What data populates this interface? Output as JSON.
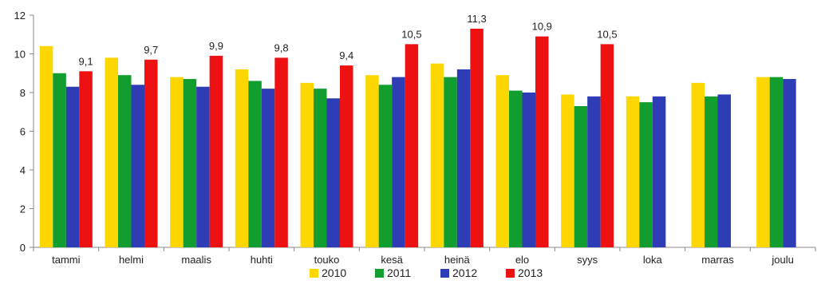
{
  "chart_data": {
    "type": "bar",
    "title": "",
    "xlabel": "",
    "ylabel": "",
    "ylim": [
      0,
      12
    ],
    "yticks": [
      "0",
      "2",
      "4",
      "6",
      "8",
      "10",
      "12"
    ],
    "categories": [
      "tammi",
      "helmi",
      "maalis",
      "huhti",
      "touko",
      "kesä",
      "heinä",
      "elo",
      "syys",
      "loka",
      "marras",
      "joulu"
    ],
    "series": [
      {
        "name": "2010",
        "color": "#FFD700",
        "values": [
          10.4,
          9.8,
          8.8,
          9.2,
          8.5,
          8.9,
          9.5,
          8.9,
          7.9,
          7.8,
          8.5,
          8.8
        ]
      },
      {
        "name": "2011",
        "color": "#119E2E",
        "values": [
          9.0,
          8.9,
          8.7,
          8.6,
          8.2,
          8.4,
          8.8,
          8.1,
          7.3,
          7.5,
          7.8,
          8.8
        ]
      },
      {
        "name": "2012",
        "color": "#2E3CB5",
        "values": [
          8.3,
          8.4,
          8.3,
          8.2,
          7.7,
          8.8,
          9.2,
          8.0,
          7.8,
          7.8,
          7.9,
          8.7
        ]
      },
      {
        "name": "2013",
        "color": "#EE1111",
        "values": [
          9.1,
          9.7,
          9.9,
          9.8,
          9.4,
          10.5,
          11.3,
          10.9,
          10.5,
          null,
          null,
          null
        ],
        "data_labels": [
          "9,1",
          "9,7",
          "9,9",
          "9,8",
          "9,4",
          "10,5",
          "11,3",
          "10,9",
          "10,5"
        ]
      }
    ],
    "grid": false,
    "legend_position": "bottom"
  }
}
